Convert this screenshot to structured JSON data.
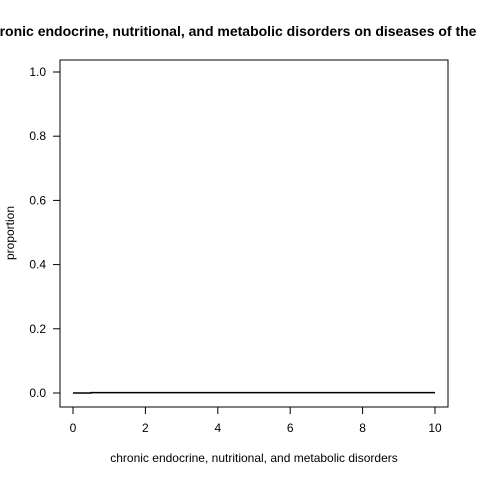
{
  "chart_data": {
    "type": "line",
    "title": "Effect of chronic endocrine, nutritional, and metabolic disorders on diseases of the eye and adnexa",
    "xlabel": "chronic endocrine, nutritional, and metabolic disorders",
    "ylabel": "proportion",
    "xlim": [
      0,
      10
    ],
    "ylim": [
      0,
      1
    ],
    "x_ticks": [
      0,
      2,
      4,
      6,
      8,
      10
    ],
    "y_ticks": [
      0.0,
      0.2,
      0.4,
      0.6,
      0.8,
      1.0
    ],
    "x_tick_labels": [
      "0",
      "2",
      "4",
      "6",
      "8",
      "10"
    ],
    "y_tick_labels": [
      "0.0",
      "0.2",
      "0.4",
      "0.6",
      "0.8",
      "1.0"
    ],
    "grid": false,
    "series": [
      {
        "color": "#000000",
        "x": [
          0,
          0.5,
          0.5,
          10
        ],
        "y": [
          0.0,
          0.0,
          0.001,
          0.001
        ]
      }
    ]
  }
}
